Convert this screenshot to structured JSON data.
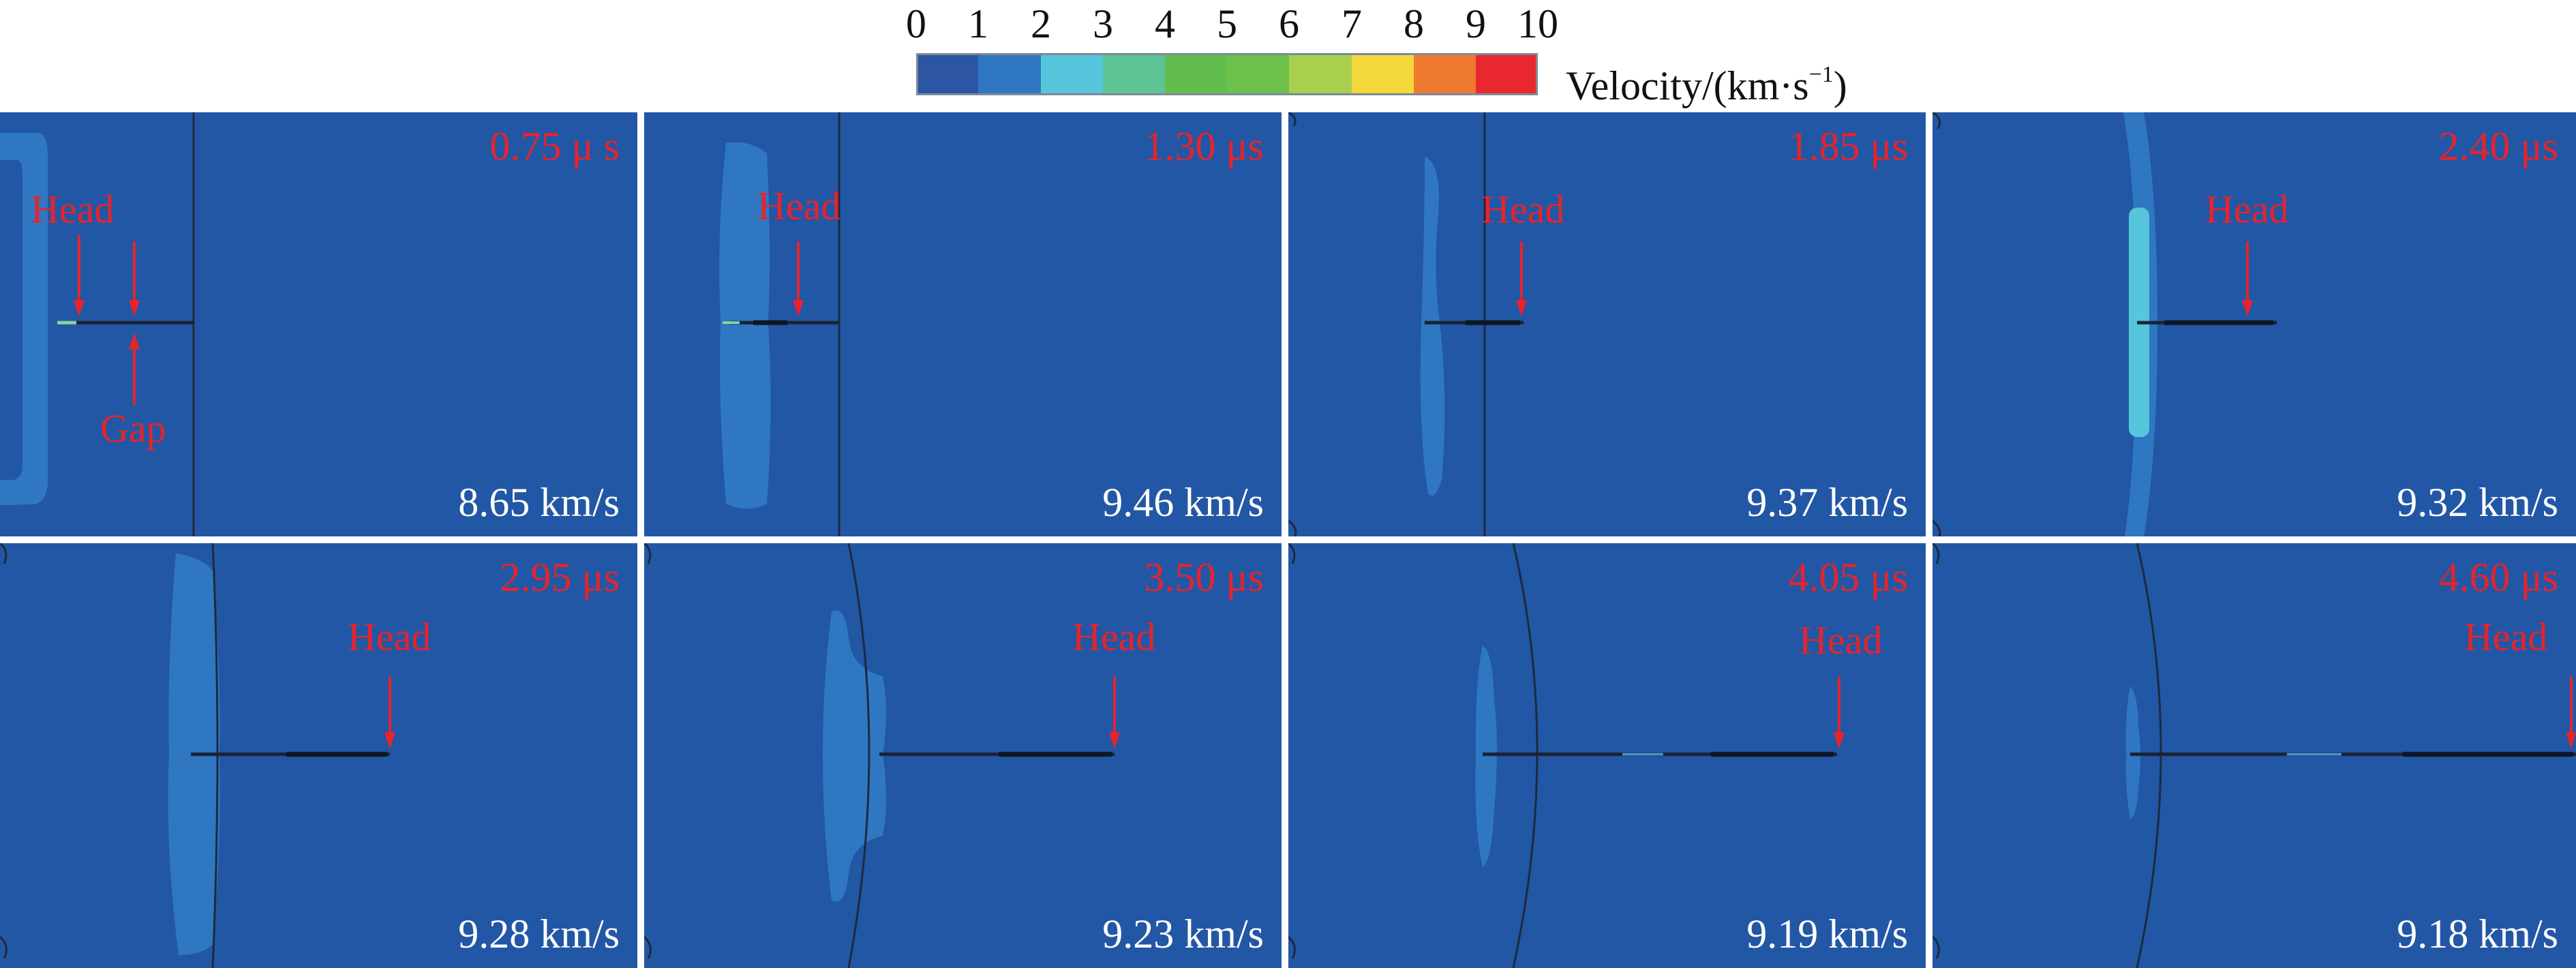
{
  "legend": {
    "ticks": [
      "0",
      "1",
      "2",
      "3",
      "4",
      "5",
      "6",
      "7",
      "8",
      "9",
      "10"
    ],
    "colors": [
      "#2c56a4",
      "#2f77c1",
      "#57c5dc",
      "#5dc496",
      "#62bd4d",
      "#6dc04a",
      "#a9d04d",
      "#f2d83b",
      "#f07930",
      "#e8282e"
    ],
    "title_main": "Velocity/(km·s",
    "title_exp": "−1",
    "title_close": ")"
  },
  "panels": [
    {
      "time": "0.75 μ s",
      "velocity": "8.65 km/s",
      "head_label": "Head",
      "gap_label": "Gap"
    },
    {
      "time": "1.30 μs",
      "velocity": "9.46 km/s",
      "head_label": "Head"
    },
    {
      "time": "1.85 μs",
      "velocity": "9.37 km/s",
      "head_label": "Head"
    },
    {
      "time": "2.40 μs",
      "velocity": "9.32 km/s",
      "head_label": "Head"
    },
    {
      "time": "2.95 μs",
      "velocity": "9.28 km/s",
      "head_label": "Head"
    },
    {
      "time": "3.50 μs",
      "velocity": "9.23 km/s",
      "head_label": "Head"
    },
    {
      "time": "4.05 μs",
      "velocity": "9.19 km/s",
      "head_label": "Head"
    },
    {
      "time": "4.60 μs",
      "velocity": "9.18 km/s",
      "head_label": "Head"
    }
  ],
  "colors": {
    "background": "#2257a5",
    "annotation": "#e8232b",
    "velocity_text": "#ffffff"
  }
}
